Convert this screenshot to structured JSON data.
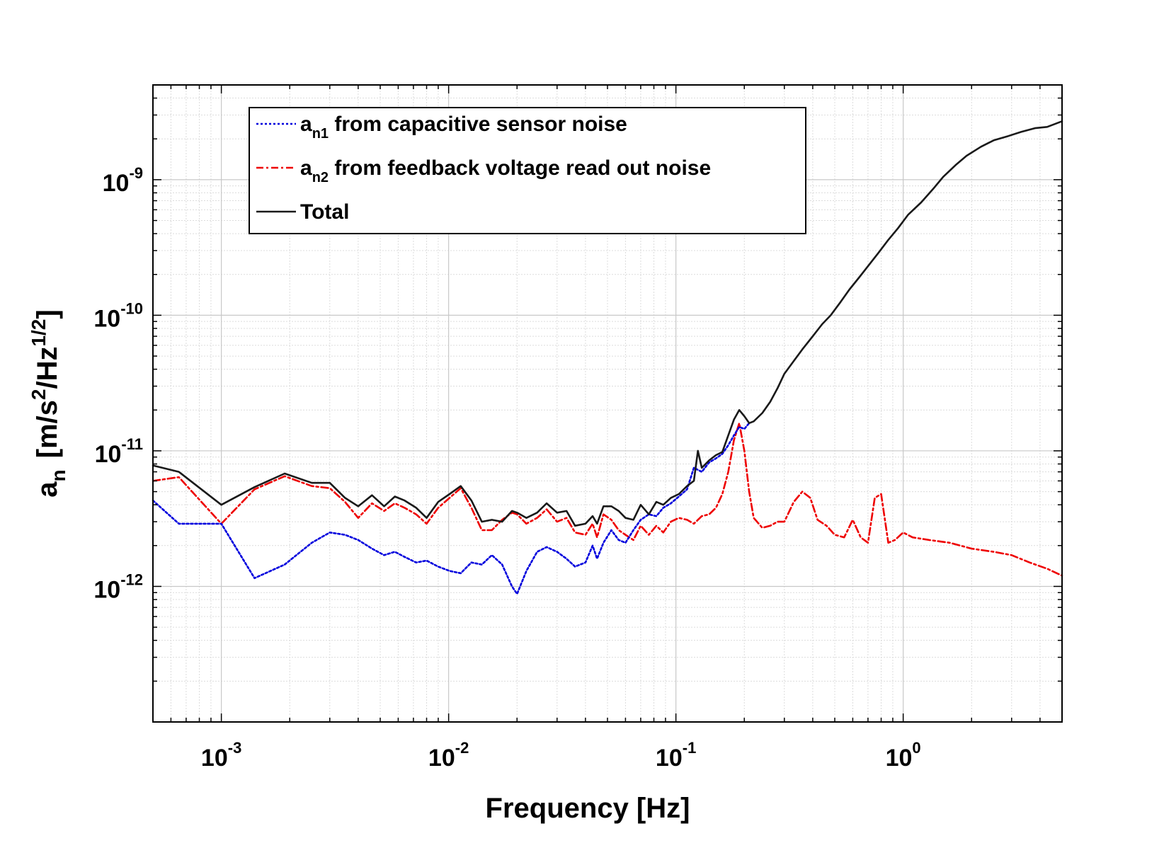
{
  "chart_data": {
    "type": "line",
    "title": "",
    "xscale": "log",
    "yscale": "log",
    "xlim": [
      0.0005,
      5
    ],
    "ylim": [
      1e-13,
      5e-09
    ],
    "grid": true,
    "legend_position": "top-left",
    "xlabel": "Frequency  [Hz]",
    "ylabel": {
      "prefix": "a",
      "prefix_sub": "n",
      "units_open": "[m/s",
      "units_sup1": "2",
      "units_mid": "/Hz",
      "units_sup2": "1/2",
      "units_close": "]"
    },
    "x_ticks": [
      {
        "value": 0.001,
        "base": "10",
        "exp": "-3"
      },
      {
        "value": 0.01,
        "base": "10",
        "exp": "-2"
      },
      {
        "value": 0.1,
        "base": "10",
        "exp": "-1"
      },
      {
        "value": 1,
        "base": "10",
        "exp": "0"
      }
    ],
    "y_ticks": [
      {
        "value": 1e-12,
        "base": "10",
        "exp": "-12"
      },
      {
        "value": 1e-11,
        "base": "10",
        "exp": "-11"
      },
      {
        "value": 1e-10,
        "base": "10",
        "exp": "-10"
      },
      {
        "value": 1e-09,
        "base": "10",
        "exp": "-9"
      }
    ],
    "series": [
      {
        "name": "a_n1 from capacitive sensor noise",
        "legend_main": "a",
        "legend_sub": "n1",
        "legend_rest": " from capacitive sensor noise",
        "color": "#0000dd",
        "dash": "3,3",
        "x": [
          0.0005,
          0.00065,
          0.001,
          0.0014,
          0.0019,
          0.0025,
          0.003,
          0.0035,
          0.004,
          0.0046,
          0.0052,
          0.0058,
          0.0064,
          0.0072,
          0.008,
          0.009,
          0.0101,
          0.0113,
          0.0126,
          0.014,
          0.0155,
          0.0172,
          0.019,
          0.02,
          0.022,
          0.0245,
          0.027,
          0.03,
          0.033,
          0.036,
          0.04,
          0.043,
          0.045,
          0.048,
          0.052,
          0.056,
          0.06,
          0.065,
          0.07,
          0.076,
          0.082,
          0.088,
          0.095,
          0.103,
          0.112,
          0.12,
          0.13,
          0.14,
          0.15,
          0.16,
          0.17,
          0.18,
          0.19,
          0.2,
          0.21
        ],
        "y": [
          4.3e-12,
          2.9e-12,
          2.9e-12,
          1.15e-12,
          1.45e-12,
          2.1e-12,
          2.5e-12,
          2.4e-12,
          2.2e-12,
          1.9e-12,
          1.7e-12,
          1.8e-12,
          1.65e-12,
          1.5e-12,
          1.55e-12,
          1.4e-12,
          1.3e-12,
          1.25e-12,
          1.5e-12,
          1.45e-12,
          1.7e-12,
          1.45e-12,
          1e-12,
          8.8e-13,
          1.3e-12,
          1.8e-12,
          1.95e-12,
          1.8e-12,
          1.6e-12,
          1.4e-12,
          1.5e-12,
          2e-12,
          1.6e-12,
          2.1e-12,
          2.6e-12,
          2.2e-12,
          2.1e-12,
          2.6e-12,
          3.1e-12,
          3.4e-12,
          3.3e-12,
          3.8e-12,
          4.1e-12,
          4.6e-12,
          5.2e-12,
          7.5e-12,
          7e-12,
          8.2e-12,
          8.8e-12,
          9.5e-12,
          1.1e-11,
          1.3e-11,
          1.5e-11,
          1.45e-11,
          1.6e-11
        ]
      },
      {
        "name": "a_n2 from feedback voltage read out noise",
        "legend_main": "a",
        "legend_sub": "n2",
        "legend_rest": " from feedback voltage read out noise",
        "color": "#ee0000",
        "dash": "10,4,3,4",
        "x": [
          0.0005,
          0.00065,
          0.001,
          0.0014,
          0.0019,
          0.0025,
          0.003,
          0.0035,
          0.004,
          0.0046,
          0.0052,
          0.0058,
          0.0064,
          0.0072,
          0.008,
          0.009,
          0.0101,
          0.0113,
          0.0126,
          0.014,
          0.0155,
          0.0172,
          0.019,
          0.02,
          0.022,
          0.0245,
          0.027,
          0.03,
          0.033,
          0.036,
          0.04,
          0.043,
          0.045,
          0.048,
          0.052,
          0.056,
          0.06,
          0.065,
          0.07,
          0.076,
          0.082,
          0.088,
          0.095,
          0.103,
          0.112,
          0.12,
          0.13,
          0.14,
          0.15,
          0.16,
          0.17,
          0.18,
          0.19,
          0.2,
          0.21,
          0.22,
          0.24,
          0.26,
          0.28,
          0.3,
          0.33,
          0.36,
          0.39,
          0.42,
          0.46,
          0.5,
          0.55,
          0.6,
          0.65,
          0.7,
          0.75,
          0.8,
          0.86,
          0.92,
          1,
          1.1,
          1.3,
          1.6,
          2,
          2.5,
          3,
          3.6,
          4.3,
          5
        ],
        "y": [
          6e-12,
          6.4e-12,
          2.9e-12,
          5.2e-12,
          6.5e-12,
          5.5e-12,
          5.3e-12,
          4.2e-12,
          3.2e-12,
          4.1e-12,
          3.6e-12,
          4.1e-12,
          3.8e-12,
          3.4e-12,
          2.9e-12,
          3.8e-12,
          4.5e-12,
          5.3e-12,
          3.8e-12,
          2.6e-12,
          2.6e-12,
          3.1e-12,
          3.5e-12,
          3.4e-12,
          2.9e-12,
          3.2e-12,
          3.7e-12,
          3e-12,
          3.2e-12,
          2.5e-12,
          2.4e-12,
          2.9e-12,
          2.3e-12,
          3.4e-12,
          3.1e-12,
          2.6e-12,
          2.4e-12,
          2.2e-12,
          2.8e-12,
          2.4e-12,
          2.8e-12,
          2.5e-12,
          3e-12,
          3.2e-12,
          3.1e-12,
          2.9e-12,
          3.3e-12,
          3.4e-12,
          3.8e-12,
          4.8e-12,
          7e-12,
          1.2e-11,
          1.6e-11,
          1e-11,
          5e-12,
          3.2e-12,
          2.7e-12,
          2.8e-12,
          3e-12,
          3e-12,
          4.2e-12,
          5e-12,
          4.5e-12,
          3.1e-12,
          2.8e-12,
          2.4e-12,
          2.3e-12,
          3.1e-12,
          2.3e-12,
          2.1e-12,
          4.5e-12,
          4.8e-12,
          2.1e-12,
          2.2e-12,
          2.5e-12,
          2.3e-12,
          2.2e-12,
          2.1e-12,
          1.9e-12,
          1.8e-12,
          1.7e-12,
          1.5e-12,
          1.35e-12,
          1.2e-12
        ]
      },
      {
        "name": "Total",
        "legend_main": "Total",
        "legend_sub": "",
        "legend_rest": "",
        "color": "#1a1a1a",
        "dash": "",
        "x": [
          0.0005,
          0.00065,
          0.001,
          0.0014,
          0.0019,
          0.0025,
          0.003,
          0.0035,
          0.004,
          0.0046,
          0.0052,
          0.0058,
          0.0064,
          0.0072,
          0.008,
          0.009,
          0.0101,
          0.0113,
          0.0126,
          0.014,
          0.0155,
          0.0172,
          0.019,
          0.02,
          0.022,
          0.0245,
          0.027,
          0.03,
          0.033,
          0.036,
          0.04,
          0.043,
          0.045,
          0.048,
          0.052,
          0.056,
          0.06,
          0.065,
          0.07,
          0.076,
          0.082,
          0.088,
          0.095,
          0.103,
          0.112,
          0.12,
          0.125,
          0.13,
          0.14,
          0.15,
          0.16,
          0.17,
          0.18,
          0.19,
          0.2,
          0.21,
          0.22,
          0.24,
          0.26,
          0.28,
          0.3,
          0.33,
          0.36,
          0.4,
          0.44,
          0.48,
          0.53,
          0.58,
          0.64,
          0.7,
          0.78,
          0.86,
          0.95,
          1.05,
          1.2,
          1.35,
          1.5,
          1.7,
          1.9,
          2.2,
          2.5,
          2.9,
          3.3,
          3.8,
          4.3,
          5
        ],
        "y": [
          7.8e-12,
          7e-12,
          4e-12,
          5.4e-12,
          6.8e-12,
          5.8e-12,
          5.8e-12,
          4.5e-12,
          3.9e-12,
          4.7e-12,
          3.9e-12,
          4.6e-12,
          4.3e-12,
          3.8e-12,
          3.2e-12,
          4.2e-12,
          4.8e-12,
          5.5e-12,
          4.3e-12,
          3e-12,
          3.1e-12,
          3e-12,
          3.6e-12,
          3.5e-12,
          3.2e-12,
          3.5e-12,
          4.1e-12,
          3.5e-12,
          3.6e-12,
          2.8e-12,
          2.9e-12,
          3.3e-12,
          2.9e-12,
          3.9e-12,
          3.9e-12,
          3.6e-12,
          3.2e-12,
          3.1e-12,
          4e-12,
          3.4e-12,
          4.2e-12,
          4e-12,
          4.5e-12,
          4.8e-12,
          5.5e-12,
          6e-12,
          1e-11,
          7.5e-12,
          8.5e-12,
          9.3e-12,
          9.8e-12,
          1.3e-11,
          1.7e-11,
          2e-11,
          1.8e-11,
          1.6e-11,
          1.65e-11,
          1.9e-11,
          2.3e-11,
          2.9e-11,
          3.7e-11,
          4.6e-11,
          5.6e-11,
          7e-11,
          8.6e-11,
          1e-10,
          1.25e-10,
          1.55e-10,
          1.9e-10,
          2.3e-10,
          2.9e-10,
          3.6e-10,
          4.4e-10,
          5.5e-10,
          6.8e-10,
          8.5e-10,
          1.05e-09,
          1.28e-09,
          1.5e-09,
          1.75e-09,
          1.95e-09,
          2.1e-09,
          2.25e-09,
          2.4e-09,
          2.45e-09,
          2.7e-09
        ]
      }
    ]
  }
}
